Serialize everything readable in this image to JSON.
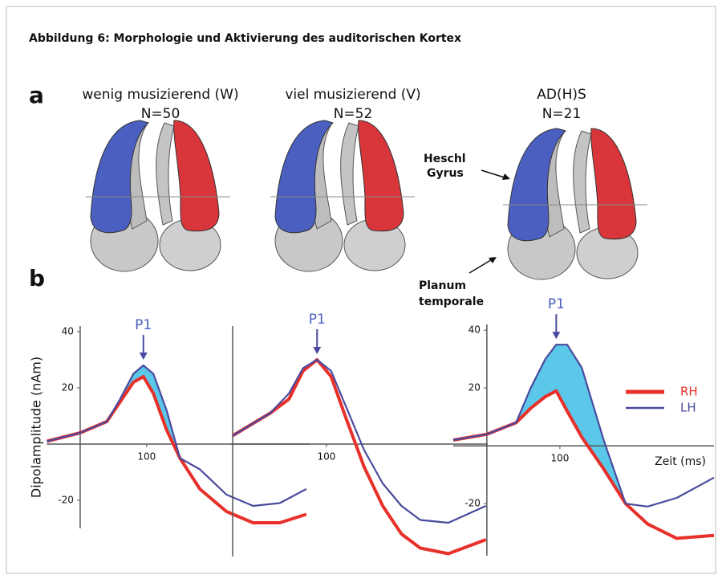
{
  "header": {
    "title": "Abbildung 6:  Morphologie und Aktivierung des auditorischen Kortex"
  },
  "panels": {
    "a": "a",
    "b": "b"
  },
  "groups": [
    {
      "name": "wenig musizierend (W)",
      "n": "N=50"
    },
    {
      "name": "viel musizierend (V)",
      "n": "N=52"
    },
    {
      "name": "AD(H)S",
      "n": "N=21"
    }
  ],
  "annotations": {
    "heschl": [
      "Heschl",
      "Gyrus"
    ],
    "planum": [
      "Planum",
      "temporale"
    ]
  },
  "chart_data": [
    {
      "type": "line",
      "y_label": "Dipolamplitude (nAm)",
      "annotation": "P1",
      "x": [
        -50,
        0,
        40,
        60,
        80,
        95,
        110,
        130,
        150,
        180,
        220,
        260,
        300,
        340
      ],
      "series": [
        {
          "color": "#e8302a",
          "values": [
            1,
            4,
            8,
            15,
            22,
            24,
            18,
            5,
            -5,
            -16,
            -24,
            -28,
            -28,
            -25
          ]
        },
        {
          "color": "#4a4a9e",
          "values": [
            1,
            4,
            8,
            16,
            25,
            28,
            25,
            12,
            -5,
            -9,
            -18,
            -22,
            -21,
            -16
          ]
        }
      ],
      "fill_color": "#5bc8ea",
      "xlim": [
        -50,
        345
      ],
      "ylim": [
        -30,
        42
      ],
      "xticks": [
        100
      ],
      "yticks": [
        -20,
        20,
        40
      ]
    },
    {
      "type": "line",
      "annotation": "P1",
      "x": [
        0,
        20,
        40,
        60,
        75,
        90,
        105,
        120,
        140,
        160,
        180,
        200,
        230,
        270
      ],
      "series": [
        {
          "color": "#e8302a",
          "values": [
            3,
            7,
            11,
            16,
            26,
            30,
            24,
            10,
            -8,
            -22,
            -32,
            -37,
            -39,
            -34
          ]
        },
        {
          "color": "#4a4a9e",
          "values": [
            3,
            7,
            11,
            18,
            27,
            30,
            26,
            14,
            -2,
            -14,
            -22,
            -27,
            -28,
            -22
          ]
        }
      ],
      "fill_color": "#5bc8ea",
      "xlim": [
        -2,
        272
      ],
      "ylim": [
        -40,
        42
      ],
      "xticks": [
        100
      ]
    },
    {
      "type": "line",
      "annotation": "P1",
      "x_label": "Zeit (ms)",
      "x": [
        -46,
        0,
        40,
        60,
        80,
        95,
        110,
        130,
        160,
        190,
        220,
        260,
        311
      ],
      "series": [
        {
          "name": "RH",
          "color": "#e8302a",
          "values": [
            2,
            4,
            8,
            13,
            17,
            19,
            12,
            3,
            -8,
            -20,
            -27,
            -32,
            -31
          ]
        },
        {
          "name": "LH",
          "color": "#4a4a9e",
          "values": [
            2,
            4,
            8,
            20,
            30,
            35,
            35,
            27,
            2,
            -20,
            -21,
            -18,
            -11
          ]
        }
      ],
      "fill_color": "#5bc8ea",
      "xlim": [
        -46,
        311
      ],
      "ylim": [
        -38,
        42
      ],
      "xticks": [
        100
      ],
      "yticks": [
        -20,
        20,
        40
      ]
    }
  ]
}
